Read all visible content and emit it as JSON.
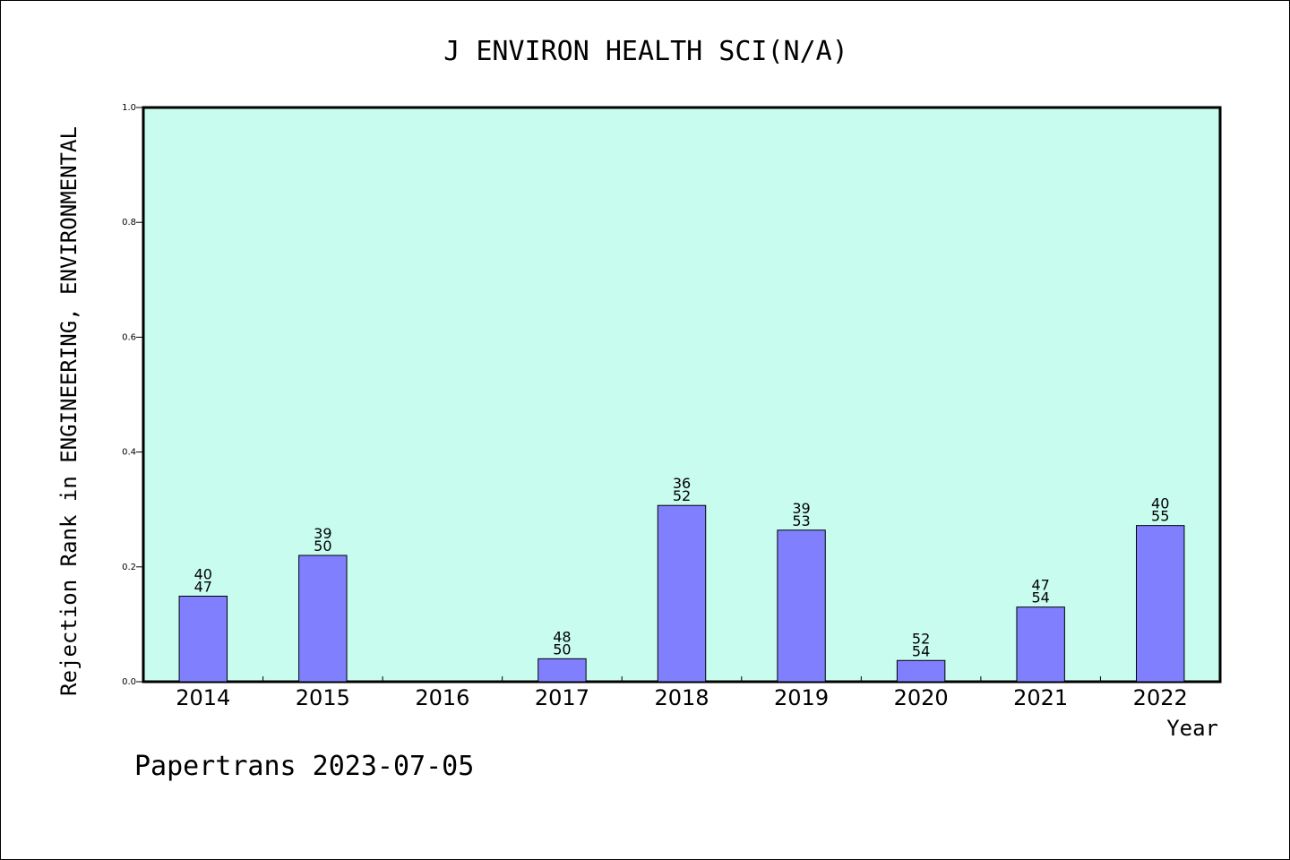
{
  "chart_data": {
    "type": "bar",
    "title": "J ENVIRON HEALTH SCI(N/A)",
    "xlabel": "Year",
    "ylabel": "Rejection Rank in ENGINEERING, ENVIRONMENTAL",
    "ylim": [
      0,
      1.0
    ],
    "yticks": [
      "0.0",
      "0.2",
      "0.4",
      "0.6",
      "0.8",
      "1.0"
    ],
    "categories": [
      "2014",
      "2015",
      "2016",
      "2017",
      "2018",
      "2019",
      "2020",
      "2021",
      "2022"
    ],
    "values": [
      0.149,
      0.22,
      null,
      0.04,
      0.307,
      0.264,
      0.037,
      0.13,
      0.272
    ],
    "bar_labels_top": [
      "40",
      "39",
      "",
      "48",
      "36",
      "39",
      "52",
      "47",
      "40"
    ],
    "bar_labels_bottom": [
      "47",
      "50",
      "",
      "50",
      "52",
      "53",
      "54",
      "54",
      "55"
    ],
    "grid": false,
    "colors": {
      "plot_bg": "#c8fcee",
      "bar": "#8080ff",
      "bar_edge": "#000000"
    }
  },
  "footer": "Papertrans 2023-07-05"
}
